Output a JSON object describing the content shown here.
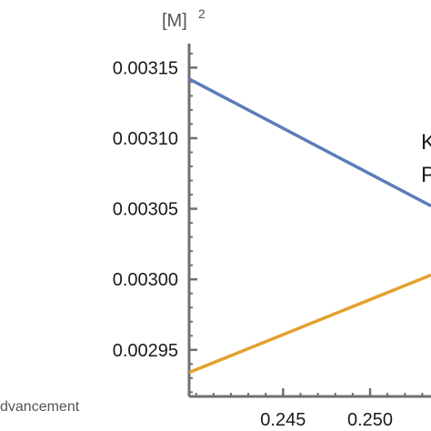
{
  "chart_data": {
    "type": "line",
    "title": "",
    "ylabel": "[M]",
    "ylabel_superscript": "2",
    "xlabel": "dvancement",
    "xlim": [
      0.2396,
      0.2535
    ],
    "ylim": [
      0.002917,
      0.003167
    ],
    "x_ticks": [
      {
        "value": 0.245,
        "label": "0.245"
      },
      {
        "value": 0.25,
        "label": "0.250"
      }
    ],
    "y_ticks": [
      {
        "value": 0.00295,
        "label": "0.00295"
      },
      {
        "value": 0.003,
        "label": "0.00300"
      },
      {
        "value": 0.00305,
        "label": "0.00305"
      },
      {
        "value": 0.0031,
        "label": "0.00310"
      },
      {
        "value": 0.00315,
        "label": "0.00315"
      }
    ],
    "series": [
      {
        "color": "#5b7db8",
        "x": [
          0.2396,
          0.2535
        ],
        "y": [
          0.003142,
          0.003052
        ]
      },
      {
        "color": "#e3a12f",
        "x": [
          0.2396,
          0.2535
        ],
        "y": [
          0.002934,
          0.003003
        ]
      }
    ],
    "annotations": [
      "K",
      "P"
    ],
    "grid": false,
    "axis_color": "#707070"
  }
}
